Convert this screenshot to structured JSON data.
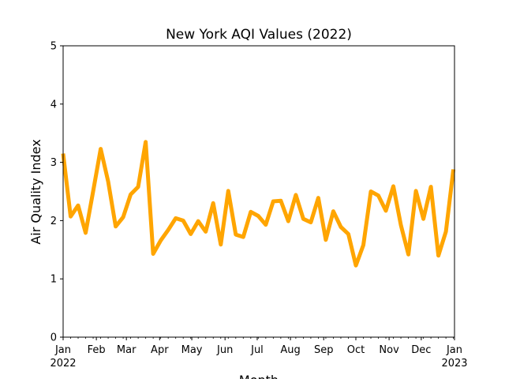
{
  "chart_data": {
    "type": "line",
    "title": "New York AQI Values (2022)",
    "xlabel": "Month",
    "ylabel": "Air Quality Index",
    "ylim": [
      0,
      5
    ],
    "xlim": [
      "2022-01-01",
      "2023-01-01"
    ],
    "yticks": [
      "0",
      "1",
      "2",
      "3",
      "4",
      "5"
    ],
    "xticks": [
      {
        "date": "2022-01-01",
        "label": "Jan",
        "sublabel": "2022"
      },
      {
        "date": "2022-02-01",
        "label": "Feb",
        "sublabel": ""
      },
      {
        "date": "2022-03-01",
        "label": "Mar",
        "sublabel": ""
      },
      {
        "date": "2022-04-01",
        "label": "Apr",
        "sublabel": ""
      },
      {
        "date": "2022-05-01",
        "label": "May",
        "sublabel": ""
      },
      {
        "date": "2022-06-01",
        "label": "Jun",
        "sublabel": ""
      },
      {
        "date": "2022-07-01",
        "label": "Jul",
        "sublabel": ""
      },
      {
        "date": "2022-08-01",
        "label": "Aug",
        "sublabel": ""
      },
      {
        "date": "2022-09-01",
        "label": "Sep",
        "sublabel": ""
      },
      {
        "date": "2022-10-01",
        "label": "Oct",
        "sublabel": ""
      },
      {
        "date": "2022-11-01",
        "label": "Nov",
        "sublabel": ""
      },
      {
        "date": "2022-12-01",
        "label": "Dec",
        "sublabel": ""
      },
      {
        "date": "2023-01-01",
        "label": "Jan",
        "sublabel": "2023"
      }
    ],
    "grid": false,
    "legend": "none",
    "series": [
      {
        "color": "#FFA500",
        "x": [
          "2022-01-01",
          "2022-01-08",
          "2022-01-15",
          "2022-01-22",
          "2022-01-29",
          "2022-02-05",
          "2022-02-12",
          "2022-02-19",
          "2022-02-26",
          "2022-03-05",
          "2022-03-12",
          "2022-03-19",
          "2022-03-26",
          "2022-04-02",
          "2022-04-09",
          "2022-04-16",
          "2022-04-23",
          "2022-04-30",
          "2022-05-07",
          "2022-05-14",
          "2022-05-21",
          "2022-05-28",
          "2022-06-04",
          "2022-06-11",
          "2022-06-18",
          "2022-06-25",
          "2022-07-02",
          "2022-07-09",
          "2022-07-16",
          "2022-07-23",
          "2022-07-30",
          "2022-08-06",
          "2022-08-13",
          "2022-08-20",
          "2022-08-27",
          "2022-09-03",
          "2022-09-10",
          "2022-09-17",
          "2022-09-24",
          "2022-10-01",
          "2022-10-08",
          "2022-10-15",
          "2022-10-22",
          "2022-10-29",
          "2022-11-05",
          "2022-11-12",
          "2022-11-19",
          "2022-11-26",
          "2022-12-03",
          "2022-12-10",
          "2022-12-17",
          "2022-12-24",
          "2022-12-31"
        ],
        "values": [
          3.15,
          2.07,
          2.26,
          1.79,
          2.5,
          3.23,
          2.67,
          1.9,
          2.06,
          2.45,
          2.58,
          3.35,
          1.43,
          1.66,
          1.84,
          2.04,
          2.0,
          1.77,
          1.99,
          1.81,
          2.3,
          1.59,
          2.51,
          1.76,
          1.72,
          2.15,
          2.08,
          1.93,
          2.33,
          2.34,
          1.99,
          2.44,
          2.03,
          1.97,
          2.39,
          1.67,
          2.16,
          1.89,
          1.77,
          1.23,
          1.58,
          2.5,
          2.43,
          2.17,
          2.59,
          1.92,
          1.42,
          2.51,
          2.03,
          2.58,
          1.4,
          1.81,
          2.88
        ]
      }
    ]
  }
}
